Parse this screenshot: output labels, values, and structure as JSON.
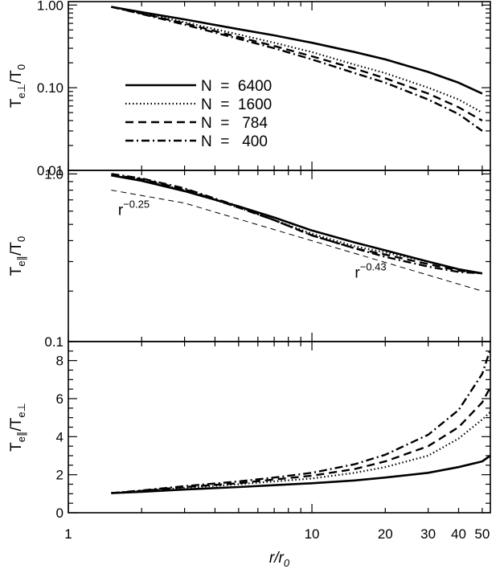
{
  "chart_data": [
    {
      "type": "line",
      "panel": "top",
      "ylabel_main": "T",
      "ylabel_sub": "e⊥",
      "ylabel_den": "/T",
      "ylabel_den_sub": "0",
      "yscale": "log",
      "ylim": [
        0.01,
        1.1
      ],
      "yticks": [
        {
          "v": 0.01,
          "label": "0.01"
        },
        {
          "v": 0.1,
          "label": "0.10"
        },
        {
          "v": 1.0,
          "label": "1.00"
        }
      ],
      "legend_placement": "lower-left",
      "series": [
        {
          "name": "N  =  6400",
          "style": "solid",
          "x": [
            1.5,
            2,
            3,
            5,
            7,
            10,
            15,
            20,
            30,
            40,
            50
          ],
          "y": [
            0.95,
            0.82,
            0.67,
            0.51,
            0.43,
            0.35,
            0.27,
            0.22,
            0.155,
            0.115,
            0.085
          ]
        },
        {
          "name": "N  =  1600",
          "style": "dotted",
          "x": [
            1.5,
            2,
            3,
            5,
            7,
            10,
            15,
            20,
            30,
            40,
            50
          ],
          "y": [
            0.95,
            0.8,
            0.62,
            0.44,
            0.35,
            0.27,
            0.19,
            0.15,
            0.1,
            0.072,
            0.05
          ]
        },
        {
          "name": "N  =   784",
          "style": "dashed",
          "x": [
            1.5,
            2,
            3,
            5,
            7,
            10,
            15,
            20,
            30,
            40,
            50
          ],
          "y": [
            0.95,
            0.79,
            0.6,
            0.41,
            0.32,
            0.24,
            0.17,
            0.13,
            0.085,
            0.058,
            0.04
          ]
        },
        {
          "name": "N  =   400",
          "style": "dashdot",
          "x": [
            1.5,
            2,
            3,
            5,
            7,
            10,
            15,
            20,
            30,
            40,
            50
          ],
          "y": [
            0.95,
            0.78,
            0.58,
            0.39,
            0.3,
            0.22,
            0.15,
            0.115,
            0.072,
            0.048,
            0.03
          ]
        }
      ]
    },
    {
      "type": "line",
      "panel": "middle",
      "ylabel_main": "T",
      "ylabel_sub": "e∥",
      "ylabel_den": "/T",
      "ylabel_den_sub": "0",
      "yscale": "log",
      "ylim": [
        0.1,
        1.05
      ],
      "yticks": [
        {
          "v": 0.1,
          "label": "0.1"
        },
        {
          "v": 1.0,
          "label": "1.0"
        }
      ],
      "series": [
        {
          "style": "solid",
          "x": [
            1.5,
            2,
            3,
            5,
            7,
            10,
            15,
            20,
            30,
            40,
            50
          ],
          "y": [
            0.98,
            0.91,
            0.79,
            0.64,
            0.55,
            0.46,
            0.39,
            0.35,
            0.3,
            0.27,
            0.255
          ]
        },
        {
          "style": "dotted",
          "x": [
            1.5,
            2,
            3,
            5,
            7,
            10,
            15,
            20,
            30,
            40,
            50
          ],
          "y": [
            0.98,
            0.92,
            0.8,
            0.63,
            0.53,
            0.44,
            0.37,
            0.34,
            0.3,
            0.27,
            0.255
          ]
        },
        {
          "style": "dashed",
          "x": [
            1.5,
            2,
            3,
            5,
            7,
            10,
            15,
            20,
            30,
            40,
            50
          ],
          "y": [
            0.99,
            0.93,
            0.81,
            0.63,
            0.53,
            0.43,
            0.36,
            0.33,
            0.29,
            0.265,
            0.255
          ]
        },
        {
          "style": "dashdot",
          "x": [
            1.5,
            2,
            3,
            5,
            7,
            10,
            15,
            20,
            30,
            40,
            50
          ],
          "y": [
            1.0,
            0.94,
            0.82,
            0.64,
            0.53,
            0.43,
            0.36,
            0.32,
            0.28,
            0.26,
            0.255
          ]
        },
        {
          "style": "thin-dashed",
          "x": [
            1.5,
            3,
            50
          ],
          "y": [
            0.8,
            0.67,
            0.2
          ]
        }
      ],
      "annotations": [
        {
          "base": "r",
          "exp": "−0.25",
          "x": 1.6,
          "y": 0.57
        },
        {
          "base": "r",
          "exp": "−0.43",
          "x": 15,
          "y": 0.24
        }
      ]
    },
    {
      "type": "line",
      "panel": "bottom",
      "ylabel_main": "T",
      "ylabel_sub": "e∥",
      "ylabel_den": "/T",
      "ylabel_den_sub": "e⊥",
      "yscale": "linear",
      "ylim": [
        0,
        9
      ],
      "yticks": [
        {
          "v": 0,
          "label": "0"
        },
        {
          "v": 2,
          "label": "2"
        },
        {
          "v": 4,
          "label": "4"
        },
        {
          "v": 6,
          "label": "6"
        },
        {
          "v": 8,
          "label": "8"
        }
      ],
      "xlabel": "r/r",
      "xlabel_sub": "0",
      "xscale": "log",
      "xlim": [
        1,
        54
      ],
      "xticks": [
        {
          "v": 1,
          "label": "1"
        },
        {
          "v": 10,
          "label": "10"
        },
        {
          "v": 20,
          "label": "20"
        },
        {
          "v": 30,
          "label": "30"
        },
        {
          "v": 40,
          "label": "40"
        },
        {
          "v": 50,
          "label": "50"
        }
      ],
      "series": [
        {
          "style": "solid",
          "x": [
            1.5,
            2,
            3,
            5,
            7,
            10,
            15,
            20,
            30,
            40,
            50,
            54
          ],
          "y": [
            1.03,
            1.1,
            1.22,
            1.35,
            1.45,
            1.55,
            1.7,
            1.85,
            2.1,
            2.4,
            2.7,
            3.0
          ]
        },
        {
          "style": "dotted",
          "x": [
            1.5,
            2,
            3,
            5,
            7,
            10,
            15,
            20,
            30,
            40,
            50,
            54
          ],
          "y": [
            1.03,
            1.15,
            1.3,
            1.5,
            1.65,
            1.8,
            2.1,
            2.4,
            3.0,
            3.9,
            4.9,
            5.3
          ]
        },
        {
          "style": "dashed",
          "x": [
            1.5,
            2,
            3,
            5,
            7,
            10,
            15,
            20,
            30,
            40,
            50,
            54
          ],
          "y": [
            1.03,
            1.15,
            1.35,
            1.55,
            1.75,
            1.95,
            2.3,
            2.7,
            3.5,
            4.5,
            5.8,
            6.6
          ]
        },
        {
          "style": "dashdot",
          "x": [
            1.5,
            2,
            3,
            5,
            7,
            10,
            15,
            20,
            30,
            40,
            50,
            54
          ],
          "y": [
            1.03,
            1.17,
            1.4,
            1.65,
            1.85,
            2.1,
            2.55,
            3.05,
            4.1,
            5.4,
            7.3,
            8.6
          ]
        }
      ]
    }
  ]
}
